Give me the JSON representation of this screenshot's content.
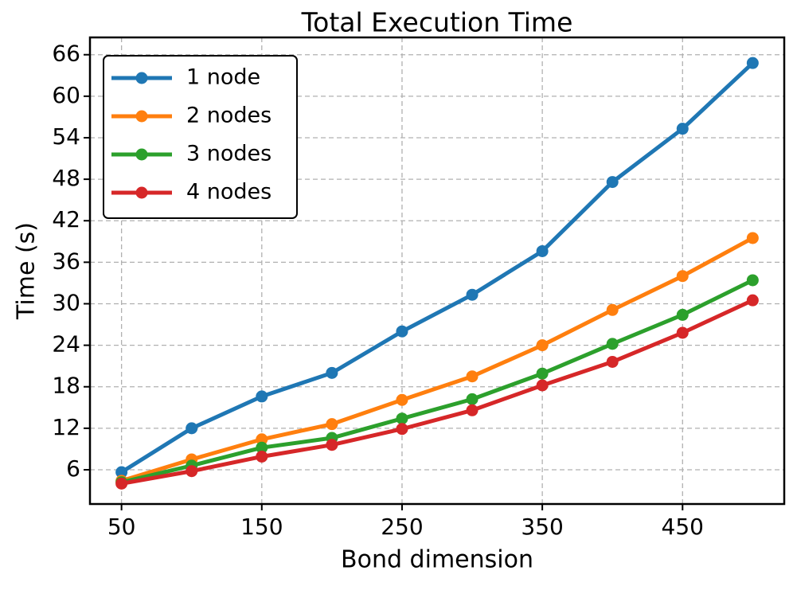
{
  "chart_data": {
    "type": "line",
    "title": "Total Execution Time",
    "x_label": "Bond dimension",
    "y_label": "Time (s)",
    "x": [
      50,
      100,
      150,
      200,
      250,
      300,
      350,
      400,
      450,
      500
    ],
    "series": [
      {
        "name": "1 node",
        "color": "#1f77b4",
        "values": [
          5.65,
          12.0,
          16.6,
          20.0,
          26.0,
          31.3,
          37.6,
          47.6,
          55.3,
          64.8
        ]
      },
      {
        "name": "2 nodes",
        "color": "#ff7f0e",
        "values": [
          4.4,
          7.5,
          10.4,
          12.6,
          16.1,
          19.5,
          24.0,
          29.1,
          34.0,
          39.5
        ]
      },
      {
        "name": "3 nodes",
        "color": "#2ca02c",
        "values": [
          4.2,
          6.6,
          9.2,
          10.6,
          13.4,
          16.2,
          19.9,
          24.2,
          28.4,
          33.4
        ]
      },
      {
        "name": "4 nodes",
        "color": "#d62728",
        "values": [
          4.0,
          5.8,
          7.9,
          9.6,
          11.9,
          14.6,
          18.2,
          21.6,
          25.8,
          30.5
        ]
      }
    ],
    "xlim": [
      27.5,
      522.5
    ],
    "xticks": [
      50,
      150,
      250,
      350,
      450
    ],
    "ylim": [
      1.05,
      68.5
    ],
    "yticks": [
      6,
      12,
      18,
      24,
      30,
      36,
      42,
      48,
      54,
      60,
      66
    ],
    "grid": true,
    "legend": "upper left"
  }
}
